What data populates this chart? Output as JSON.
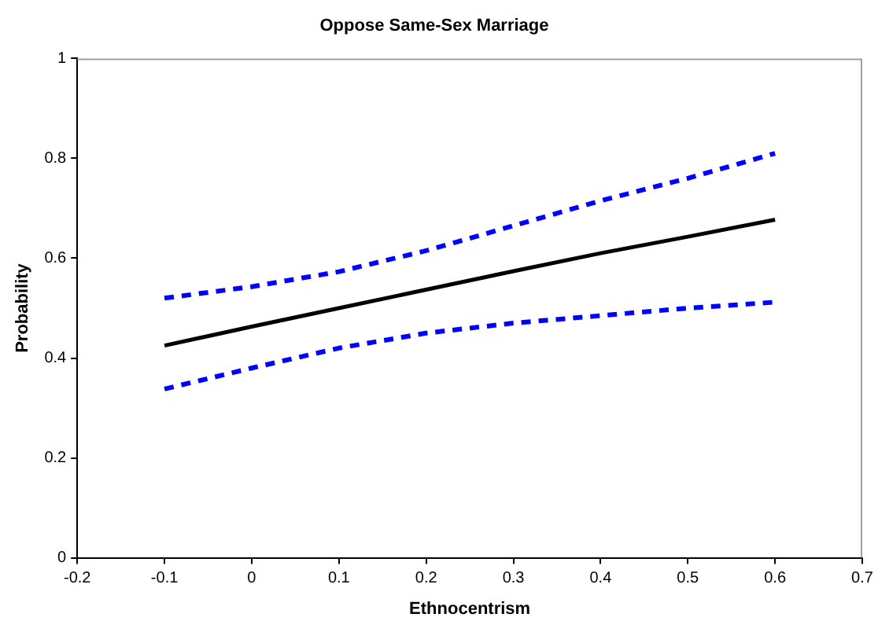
{
  "chart_data": {
    "type": "line",
    "title": "Oppose Same-Sex Marriage",
    "xlabel": "Ethnocentrism",
    "ylabel": "Probability",
    "x": [
      -0.1,
      0,
      0.1,
      0.2,
      0.3,
      0.4,
      0.5,
      0.6
    ],
    "series": [
      {
        "color": "#000000",
        "line_style": "solid",
        "values": [
          0.425,
          0.463,
          0.5,
          0.537,
          0.574,
          0.61,
          0.643,
          0.677
        ]
      },
      {
        "color": "#0000ff",
        "line_style": "dashed",
        "values": [
          0.52,
          0.543,
          0.573,
          0.615,
          0.665,
          0.715,
          0.76,
          0.81
        ]
      },
      {
        "color": "#0000ff",
        "line_style": "dashed",
        "values": [
          0.338,
          0.38,
          0.42,
          0.45,
          0.47,
          0.485,
          0.5,
          0.512
        ]
      }
    ],
    "xlim": [
      -0.2,
      0.7
    ],
    "xticks": [
      -0.2,
      -0.1,
      0,
      0.1,
      0.2,
      0.3,
      0.4,
      0.5,
      0.6,
      0.7
    ],
    "ylim": [
      0,
      1
    ],
    "yticks": [
      0,
      0.2,
      0.4,
      0.6,
      0.8,
      1
    ],
    "grid": false,
    "legend": false,
    "marker": "none"
  }
}
